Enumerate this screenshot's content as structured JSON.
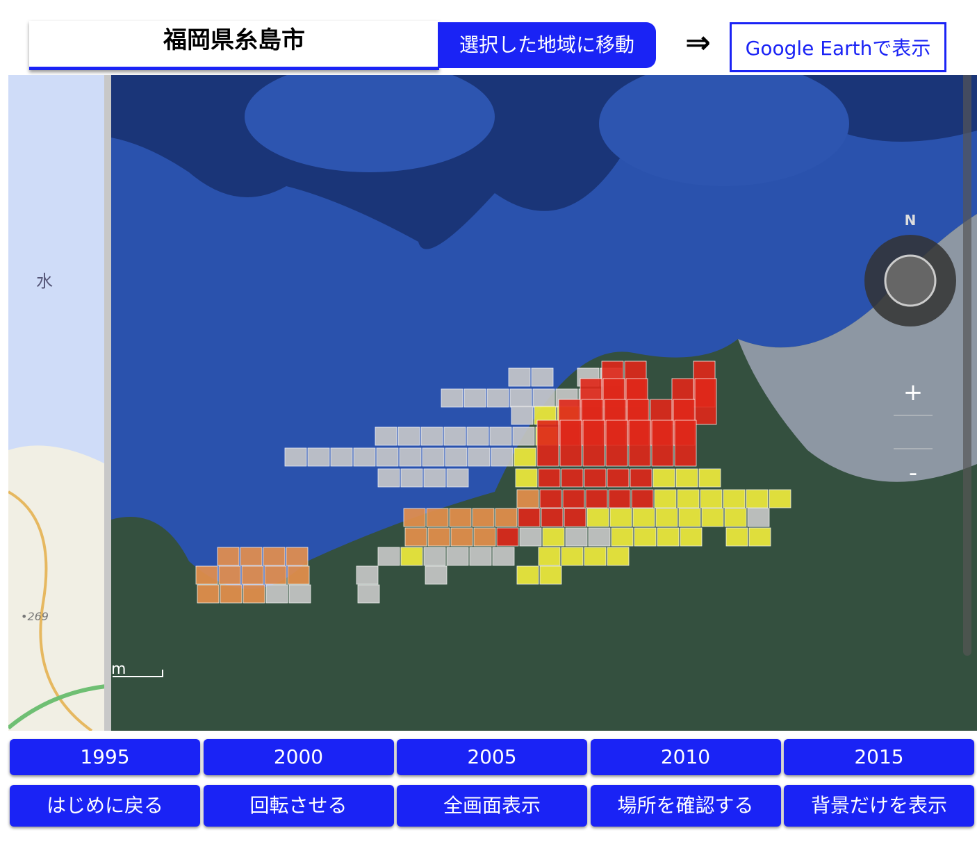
{
  "header": {
    "title": "福岡県糸島市",
    "move_button": "選択した地域に移動",
    "arrow": "⇒",
    "earth_button": "Google Earthで表示"
  },
  "map": {
    "compass_label": "N",
    "zoom_in": "+",
    "zoom_out": "-",
    "map_label": "水",
    "elevation_label": "•269",
    "scale_label": "m"
  },
  "year_buttons": [
    "1995",
    "2000",
    "2005",
    "2010",
    "2015"
  ],
  "action_buttons": [
    "はじめに戻る",
    "回転させる",
    "全画面表示",
    "場所を確認する",
    "背景だけを表示"
  ]
}
